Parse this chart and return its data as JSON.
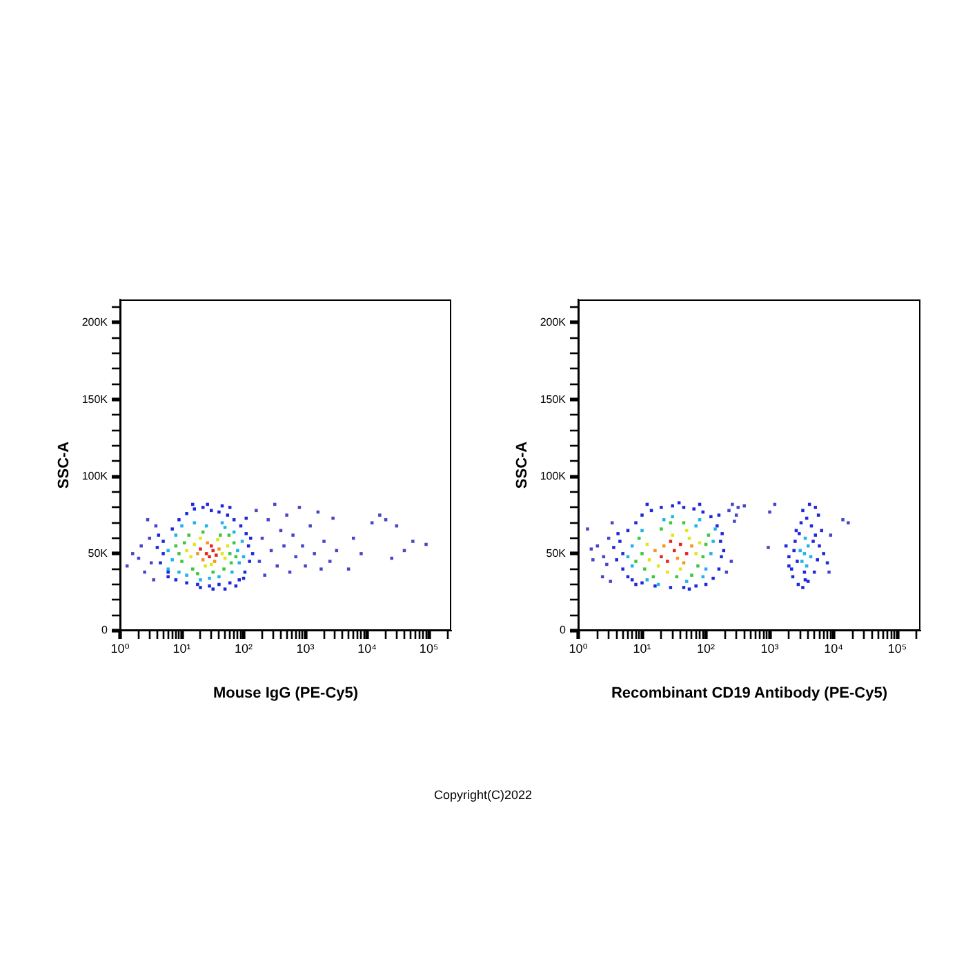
{
  "chart_data": [
    {
      "type": "scatter",
      "xlabel": "Mouse IgG (PE-Cy5)",
      "ylabel": "SSC-A",
      "log": "x",
      "marker": "square",
      "grid": false,
      "annotations": [
        "Copyright(C)2022"
      ],
      "xlim": [
        1,
        230000
      ],
      "xticks": [
        {
          "value": 1,
          "label": "10⁰"
        },
        {
          "value": 2,
          "label": null
        },
        {
          "value": 3,
          "label": null
        },
        {
          "value": 4,
          "label": null
        },
        {
          "value": 5,
          "label": null
        },
        {
          "value": 6,
          "label": null
        },
        {
          "value": 7,
          "label": null
        },
        {
          "value": 8,
          "label": null
        },
        {
          "value": 9,
          "label": null
        },
        {
          "value": 10,
          "label": "10¹"
        },
        {
          "value": 20,
          "label": null
        },
        {
          "value": 30,
          "label": null
        },
        {
          "value": 40,
          "label": null
        },
        {
          "value": 50,
          "label": null
        },
        {
          "value": 60,
          "label": null
        },
        {
          "value": 70,
          "label": null
        },
        {
          "value": 80,
          "label": null
        },
        {
          "value": 90,
          "label": null
        },
        {
          "value": 100,
          "label": "10²"
        },
        {
          "value": 200,
          "label": null
        },
        {
          "value": 300,
          "label": null
        },
        {
          "value": 400,
          "label": null
        },
        {
          "value": 500,
          "label": null
        },
        {
          "value": 600,
          "label": null
        },
        {
          "value": 700,
          "label": null
        },
        {
          "value": 800,
          "label": null
        },
        {
          "value": 900,
          "label": null
        },
        {
          "value": 1000,
          "label": "10³"
        },
        {
          "value": 2000,
          "label": null
        },
        {
          "value": 3000,
          "label": null
        },
        {
          "value": 4000,
          "label": null
        },
        {
          "value": 5000,
          "label": null
        },
        {
          "value": 6000,
          "label": null
        },
        {
          "value": 7000,
          "label": null
        },
        {
          "value": 8000,
          "label": null
        },
        {
          "value": 9000,
          "label": null
        },
        {
          "value": 10000,
          "label": "10⁴"
        },
        {
          "value": 20000,
          "label": null
        },
        {
          "value": 30000,
          "label": null
        },
        {
          "value": 40000,
          "label": null
        },
        {
          "value": 50000,
          "label": null
        },
        {
          "value": 60000,
          "label": null
        },
        {
          "value": 70000,
          "label": null
        },
        {
          "value": 80000,
          "label": null
        },
        {
          "value": 90000,
          "label": null
        },
        {
          "value": 100000,
          "label": "10⁵"
        },
        {
          "value": 200000,
          "label": null
        }
      ],
      "ylim": [
        0,
        215000
      ],
      "yticks": [
        0,
        {
          "value": 10000,
          "label": null
        },
        {
          "value": 20000,
          "label": null
        },
        {
          "value": 30000,
          "label": null
        },
        {
          "value": 40000,
          "label": null
        },
        {
          "value": 50000,
          "label": "50K"
        },
        {
          "value": 60000,
          "label": null
        },
        {
          "value": 70000,
          "label": null
        },
        {
          "value": 80000,
          "label": null
        },
        {
          "value": 90000,
          "label": null
        },
        {
          "value": 100000,
          "label": "100K"
        },
        {
          "value": 110000,
          "label": null
        },
        {
          "value": 120000,
          "label": null
        },
        {
          "value": 130000,
          "label": null
        },
        {
          "value": 140000,
          "label": null
        },
        {
          "value": 150000,
          "label": "150K"
        },
        {
          "value": 160000,
          "label": null
        },
        {
          "value": 170000,
          "label": null
        },
        {
          "value": 180000,
          "label": null
        },
        {
          "value": 190000,
          "label": null
        },
        {
          "value": 200000,
          "label": "200K"
        },
        {
          "value": 210000,
          "label": null
        }
      ],
      "series": [
        {
          "color": "#e8241a",
          "x": [
            25,
            32,
            28,
            20,
            36,
            30
          ],
          "values": [
            50000,
            52000,
            48000,
            53000,
            49000,
            55000
          ]
        },
        {
          "color": "#f5961e",
          "x": [
            22,
            40,
            18,
            26,
            34
          ],
          "values": [
            46000,
            53000,
            50000,
            57000,
            45000
          ]
        },
        {
          "color": "#e1e619",
          "x": [
            14,
            45,
            16,
            50,
            24,
            38,
            12,
            30,
            20,
            55
          ],
          "values": [
            48000,
            50000,
            56000,
            47000,
            42000,
            59000,
            52000,
            43000,
            60000,
            55000
          ]
        },
        {
          "color": "#3cc83c",
          "x": [
            10,
            60,
            11,
            63,
            15,
            42,
            9,
            48,
            22,
            70,
            13,
            32,
            75,
            8,
            18,
            58
          ],
          "values": [
            45000,
            50000,
            57000,
            44000,
            40000,
            62000,
            50000,
            40000,
            64000,
            57000,
            62000,
            38000,
            48000,
            55000,
            37000,
            62000
          ]
        },
        {
          "color": "#1eb4eb",
          "x": [
            7,
            80,
            8,
            85,
            12,
            50,
            6,
            40,
            25,
            95,
            10,
            28,
            65,
            6,
            100,
            16,
            70,
            20,
            9,
            45
          ],
          "values": [
            46000,
            52000,
            62000,
            44000,
            36000,
            67000,
            52000,
            35000,
            68000,
            58000,
            68000,
            34000,
            38000,
            40000,
            48000,
            70000,
            64000,
            33000,
            38000,
            70000
          ]
        },
        {
          "color": "#1e28dc",
          "x": [
            5,
            4.5,
            5,
            6,
            7,
            9,
            12,
            16,
            22,
            30,
            40,
            55,
            70,
            90,
            110,
            120,
            125,
            105,
            85,
            60,
            40,
            28,
            18,
            12,
            8,
            6,
            4,
            15,
            26,
            45,
            60,
            4.2,
            110,
            130,
            140,
            50,
            32,
            20,
            75,
            100
          ],
          "values": [
            50000,
            44000,
            58000,
            35000,
            66000,
            72000,
            76000,
            79000,
            80000,
            78000,
            77000,
            75000,
            72000,
            68000,
            63000,
            55000,
            45000,
            38000,
            33000,
            31000,
            30000,
            29000,
            30000,
            31000,
            33000,
            38000,
            54000,
            82000,
            82000,
            81000,
            80000,
            62000,
            73000,
            60000,
            50000,
            27000,
            27000,
            28000,
            29000,
            34000
          ]
        },
        {
          "color": "#4646c8",
          "x": [
            1.3,
            1.6,
            2,
            2.5,
            3,
            3.2,
            3.8,
            2.2,
            3.5,
            2.8,
            160,
            180,
            200,
            220,
            250,
            280,
            320,
            350,
            400,
            450,
            500,
            560,
            630,
            700,
            800,
            900,
            1000,
            1200,
            1400,
            1600,
            1800,
            2000,
            2500,
            2800,
            3200,
            5000,
            6000,
            8000,
            12000,
            16000,
            20000,
            25000,
            30000,
            40000,
            55000,
            90000
          ],
          "values": [
            42000,
            50000,
            47000,
            38000,
            60000,
            44000,
            68000,
            55000,
            33000,
            72000,
            78000,
            45000,
            60000,
            36000,
            72000,
            52000,
            82000,
            42000,
            65000,
            55000,
            75000,
            38000,
            62000,
            48000,
            80000,
            55000,
            42000,
            68000,
            50000,
            77000,
            40000,
            58000,
            45000,
            73000,
            52000,
            40000,
            60000,
            50000,
            70000,
            75000,
            72000,
            47000,
            68000,
            52000,
            58000,
            56000
          ]
        }
      ]
    },
    {
      "type": "scatter",
      "xlabel": "Recombinant CD19 Antibody (PE-Cy5)",
      "ylabel": "SSC-A",
      "log": "x",
      "marker": "square",
      "grid": false,
      "xlim": [
        1,
        230000
      ],
      "xticks": [
        {
          "value": 1,
          "label": "10⁰"
        },
        {
          "value": 2,
          "label": null
        },
        {
          "value": 3,
          "label": null
        },
        {
          "value": 4,
          "label": null
        },
        {
          "value": 5,
          "label": null
        },
        {
          "value": 6,
          "label": null
        },
        {
          "value": 7,
          "label": null
        },
        {
          "value": 8,
          "label": null
        },
        {
          "value": 9,
          "label": null
        },
        {
          "value": 10,
          "label": "10¹"
        },
        {
          "value": 20,
          "label": null
        },
        {
          "value": 30,
          "label": null
        },
        {
          "value": 40,
          "label": null
        },
        {
          "value": 50,
          "label": null
        },
        {
          "value": 60,
          "label": null
        },
        {
          "value": 70,
          "label": null
        },
        {
          "value": 80,
          "label": null
        },
        {
          "value": 90,
          "label": null
        },
        {
          "value": 100,
          "label": "10²"
        },
        {
          "value": 200,
          "label": null
        },
        {
          "value": 300,
          "label": null
        },
        {
          "value": 400,
          "label": null
        },
        {
          "value": 500,
          "label": null
        },
        {
          "value": 600,
          "label": null
        },
        {
          "value": 700,
          "label": null
        },
        {
          "value": 800,
          "label": null
        },
        {
          "value": 900,
          "label": null
        },
        {
          "value": 1000,
          "label": "10³"
        },
        {
          "value": 2000,
          "label": null
        },
        {
          "value": 3000,
          "label": null
        },
        {
          "value": 4000,
          "label": null
        },
        {
          "value": 5000,
          "label": null
        },
        {
          "value": 6000,
          "label": null
        },
        {
          "value": 7000,
          "label": null
        },
        {
          "value": 8000,
          "label": null
        },
        {
          "value": 9000,
          "label": null
        },
        {
          "value": 10000,
          "label": "10⁴"
        },
        {
          "value": 20000,
          "label": null
        },
        {
          "value": 30000,
          "label": null
        },
        {
          "value": 40000,
          "label": null
        },
        {
          "value": 50000,
          "label": null
        },
        {
          "value": 60000,
          "label": null
        },
        {
          "value": 70000,
          "label": null
        },
        {
          "value": 80000,
          "label": null
        },
        {
          "value": 90000,
          "label": null
        },
        {
          "value": 100000,
          "label": "10⁵"
        },
        {
          "value": 200000,
          "label": null
        }
      ],
      "ylim": [
        0,
        215000
      ],
      "yticks": [
        0,
        {
          "value": 10000,
          "label": null
        },
        {
          "value": 20000,
          "label": null
        },
        {
          "value": 30000,
          "label": null
        },
        {
          "value": 40000,
          "label": null
        },
        {
          "value": 50000,
          "label": "50K"
        },
        {
          "value": 60000,
          "label": null
        },
        {
          "value": 70000,
          "label": null
        },
        {
          "value": 80000,
          "label": null
        },
        {
          "value": 90000,
          "label": null
        },
        {
          "value": 100000,
          "label": "100K"
        },
        {
          "value": 110000,
          "label": null
        },
        {
          "value": 120000,
          "label": null
        },
        {
          "value": 130000,
          "label": null
        },
        {
          "value": 140000,
          "label": null
        },
        {
          "value": 150000,
          "label": "150K"
        },
        {
          "value": 160000,
          "label": null
        },
        {
          "value": 170000,
          "label": null
        },
        {
          "value": 180000,
          "label": null
        },
        {
          "value": 190000,
          "label": null
        },
        {
          "value": 200000,
          "label": "200K"
        },
        {
          "value": 210000,
          "label": null
        }
      ],
      "series": [
        {
          "color": "#e8241a",
          "x": [
            20,
            32,
            40,
            25,
            50,
            28
          ],
          "values": [
            48000,
            52000,
            56000,
            45000,
            50000,
            58000
          ]
        },
        {
          "color": "#f5961e",
          "x": [
            16,
            45,
            36,
            60,
            22
          ],
          "values": [
            52000,
            44000,
            47000,
            55000,
            55000
          ]
        },
        {
          "color": "#e1e619",
          "x": [
            13,
            55,
            18,
            70,
            30,
            12,
            40,
            80,
            25,
            50
          ],
          "values": [
            46000,
            60000,
            42000,
            50000,
            62000,
            56000,
            40000,
            57000,
            38000,
            65000
          ]
        },
        {
          "color": "#3cc83c",
          "x": [
            10,
            90,
            11,
            60,
            9,
            100,
            20,
            35,
            75,
            15,
            45,
            110,
            8,
            28
          ],
          "values": [
            50000,
            48000,
            40000,
            36000,
            60000,
            56000,
            66000,
            35000,
            42000,
            35000,
            70000,
            62000,
            45000,
            70000
          ]
        },
        {
          "color": "#1eb4eb",
          "x": [
            7,
            120,
            7,
            100,
            10,
            70,
            12,
            50,
            30,
            130,
            6,
            90,
            18,
            140,
            22,
            80,
            3500,
            3200,
            4000,
            3800,
            3000,
            4400,
            3600
          ],
          "values": [
            55000,
            50000,
            42000,
            40000,
            65000,
            68000,
            33000,
            32000,
            74000,
            58000,
            48000,
            35000,
            30000,
            66000,
            72000,
            72000,
            50000,
            45000,
            55000,
            42000,
            52000,
            48000,
            60000
          ]
        },
        {
          "color": "#1e28dc",
          "x": [
            5,
            4.5,
            5,
            6,
            6,
            8,
            10,
            14,
            20,
            30,
            45,
            65,
            90,
            120,
            150,
            170,
            175,
            160,
            130,
            100,
            70,
            45,
            28,
            16,
            10,
            7,
            4,
            3.6,
            12,
            38,
            80,
            160,
            180,
            190,
            55,
            8,
            4.2,
            2000,
            2200,
            2500,
            2300,
            2800,
            3300,
            4000,
            5000,
            5600,
            6000,
            5200,
            4500,
            3800,
            3100,
            2600,
            2400,
            2000,
            7000,
            8000,
            3500,
            4800,
            3300,
            4200,
            5200,
            2700,
            2900,
            6500,
            3600,
            1800,
            5800
          ],
          "values": [
            50000,
            58000,
            40000,
            35000,
            65000,
            70000,
            75000,
            78000,
            80000,
            81000,
            80000,
            79000,
            77000,
            74000,
            68000,
            58000,
            48000,
            40000,
            34000,
            30000,
            29000,
            28000,
            28000,
            29000,
            31000,
            33000,
            46000,
            54000,
            82000,
            83000,
            82000,
            75000,
            63000,
            52000,
            27000,
            30000,
            63000,
            48000,
            40000,
            58000,
            35000,
            30000,
            28000,
            32000,
            38000,
            46000,
            55000,
            62000,
            68000,
            73000,
            70000,
            65000,
            52000,
            42000,
            50000,
            44000,
            38000,
            58000,
            78000,
            82000,
            80000,
            45000,
            63000,
            65000,
            33000,
            55000,
            75000
          ]
        },
        {
          "color": "#4646c8",
          "x": [
            1.4,
            1.6,
            1.7,
            2,
            2.4,
            2.8,
            3,
            3.2,
            2.5,
            3.4,
            230,
            260,
            300,
            320,
            280,
            250,
            210,
            400,
            1000,
            1200,
            950,
            14000,
            17000,
            9000,
            8500
          ],
          "values": [
            66000,
            53000,
            46000,
            55000,
            35000,
            43000,
            60000,
            32000,
            48000,
            70000,
            78000,
            82000,
            75000,
            80000,
            71000,
            45000,
            38000,
            81000,
            77000,
            82000,
            54000,
            72000,
            70000,
            62000,
            38000
          ]
        }
      ]
    }
  ]
}
